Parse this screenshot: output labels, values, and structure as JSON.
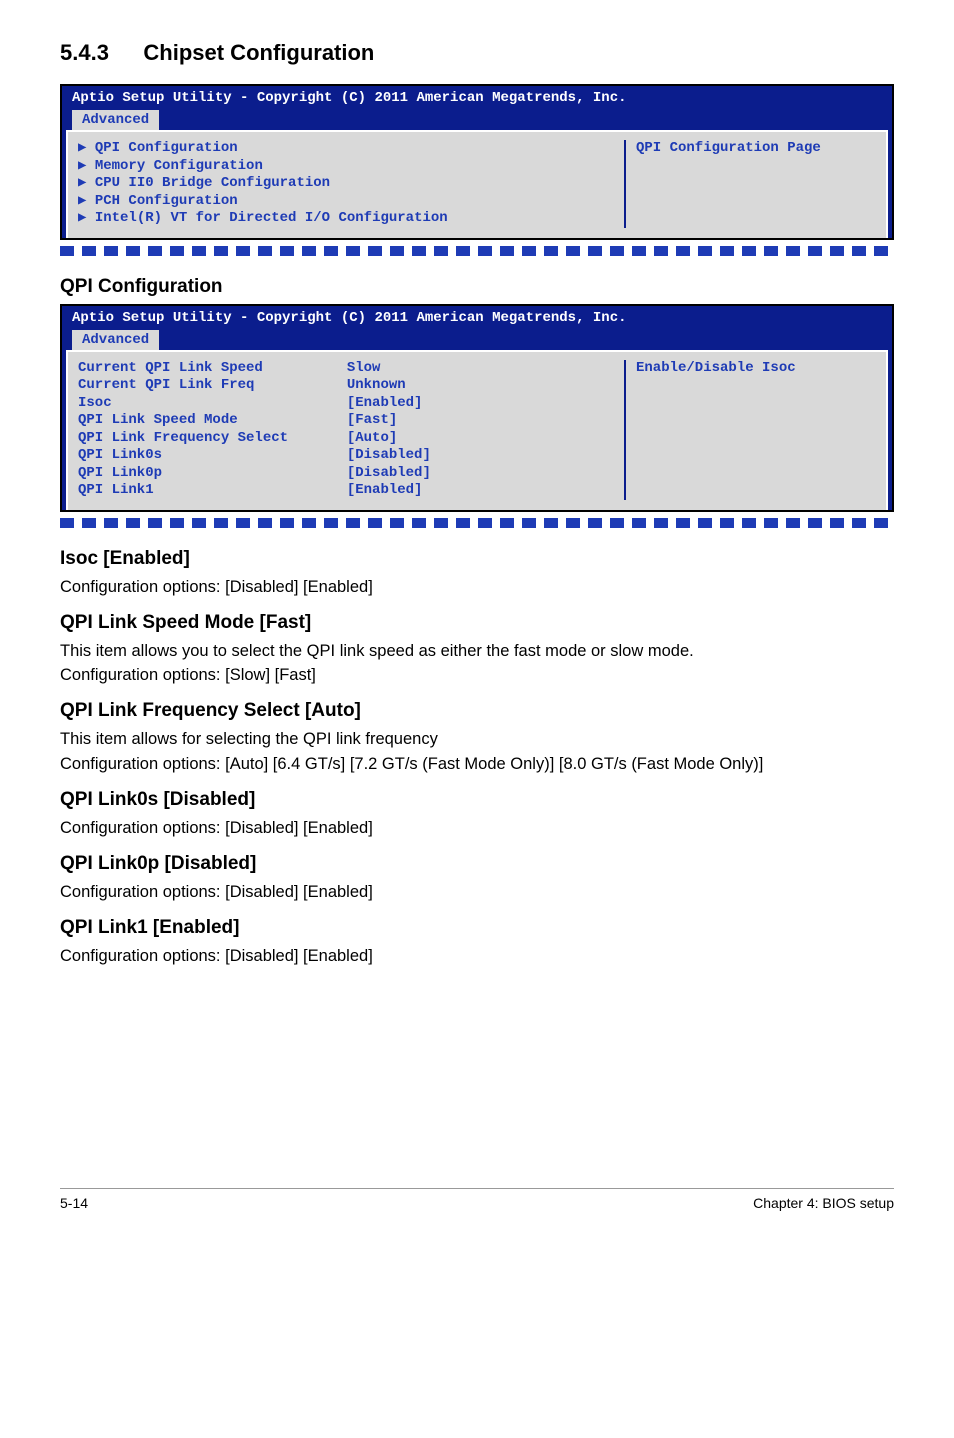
{
  "section": {
    "number": "5.4.3",
    "title": "Chipset Configuration"
  },
  "bios1": {
    "header": "Aptio Setup Utility - Copyright (C) 2011 American Megatrends, Inc.",
    "tab": "Advanced",
    "left_lines": [
      "▶ QPI Configuration",
      "▶ Memory Configuration",
      "▶ CPU II0 Bridge Configuration",
      "▶ PCH Configuration",
      "▶ Intel(R) VT for Directed I/O Configuration"
    ],
    "right": "QPI Configuration Page",
    "colors": {
      "header_bg": "#0b1d8d",
      "body_bg": "#d9d9d9",
      "menu_text": "#1e3bb5"
    }
  },
  "sub1": {
    "title": "QPI Configuration"
  },
  "bios2": {
    "header": "Aptio Setup Utility - Copyright (C) 2011 American Megatrends, Inc.",
    "tab": "Advanced",
    "labels": [
      "Current QPI Link Speed",
      "Current QPI Link Freq",
      "Isoc",
      "QPI Link Speed Mode",
      "QPI Link Frequency Select",
      "QPI Link0s",
      "QPI Link0p",
      "QPI Link1"
    ],
    "values": [
      "Slow",
      "Unknown",
      "[Enabled]",
      "[Fast]",
      "[Auto]",
      "[Disabled]",
      "[Disabled]",
      "[Enabled]"
    ],
    "right": "Enable/Disable Isoc"
  },
  "items": [
    {
      "h": "Isoc [Enabled]",
      "p": "Configuration options: [Disabled] [Enabled]"
    },
    {
      "h": "QPI Link Speed Mode [Fast]",
      "p1": "This item allows you to select the QPI link speed as either the fast mode or slow mode.",
      "p2": "Configuration options: [Slow] [Fast]"
    },
    {
      "h": "QPI Link Frequency Select [Auto]",
      "p1": "This item allows for selecting the QPI link frequency",
      "p2": "Configuration options: [Auto] [6.4 GT/s] [7.2 GT/s (Fast Mode Only)] [8.0 GT/s (Fast Mode Only)]"
    },
    {
      "h": "QPI Link0s [Disabled]",
      "p": "Configuration options: [Disabled] [Enabled]"
    },
    {
      "h": "QPI Link0p [Disabled]",
      "p": "Configuration options: [Disabled] [Enabled]"
    },
    {
      "h": "QPI Link1 [Enabled]",
      "p": "Configuration options: [Disabled] [Enabled]"
    }
  ],
  "footer": {
    "left": "5-14",
    "right": "Chapter 4: BIOS setup"
  }
}
